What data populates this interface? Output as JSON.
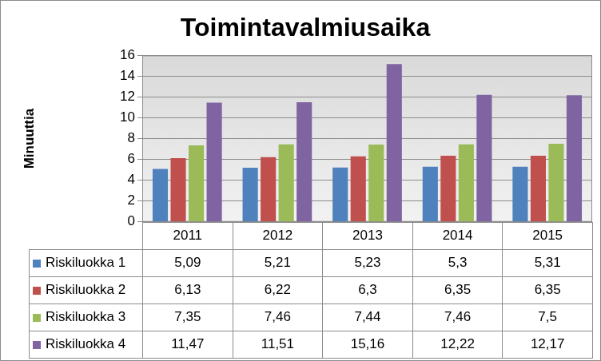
{
  "chart_data": {
    "type": "bar",
    "title": "Toimintavalmiusaika",
    "y_label": "Minuuttia",
    "categories": [
      "2011",
      "2012",
      "2013",
      "2014",
      "2015"
    ],
    "series": [
      {
        "name": "Riskiluokka 1",
        "color": "#4f81bd",
        "values": [
          5.09,
          5.21,
          5.23,
          5.3,
          5.31
        ],
        "value_labels": [
          "5,09",
          "5,21",
          "5,23",
          "5,3",
          "5,31"
        ]
      },
      {
        "name": "Riskiluokka 2",
        "color": "#c0504d",
        "values": [
          6.13,
          6.22,
          6.3,
          6.35,
          6.35
        ],
        "value_labels": [
          "6,13",
          "6,22",
          "6,3",
          "6,35",
          "6,35"
        ]
      },
      {
        "name": "Riskiluokka 3",
        "color": "#9bbb59",
        "values": [
          7.35,
          7.46,
          7.44,
          7.46,
          7.5
        ],
        "value_labels": [
          "7,35",
          "7,46",
          "7,44",
          "7,46",
          "7,5"
        ]
      },
      {
        "name": "Riskiluokka 4",
        "color": "#8064a2",
        "values": [
          11.47,
          11.51,
          15.16,
          12.22,
          12.17
        ],
        "value_labels": [
          "11,47",
          "11,51",
          "15,16",
          "12,22",
          "12,17"
        ]
      }
    ],
    "ylim": [
      0,
      16
    ],
    "yticks": [
      0,
      2,
      4,
      6,
      8,
      10,
      12,
      14,
      16
    ],
    "grid": true,
    "data_labels": true
  }
}
